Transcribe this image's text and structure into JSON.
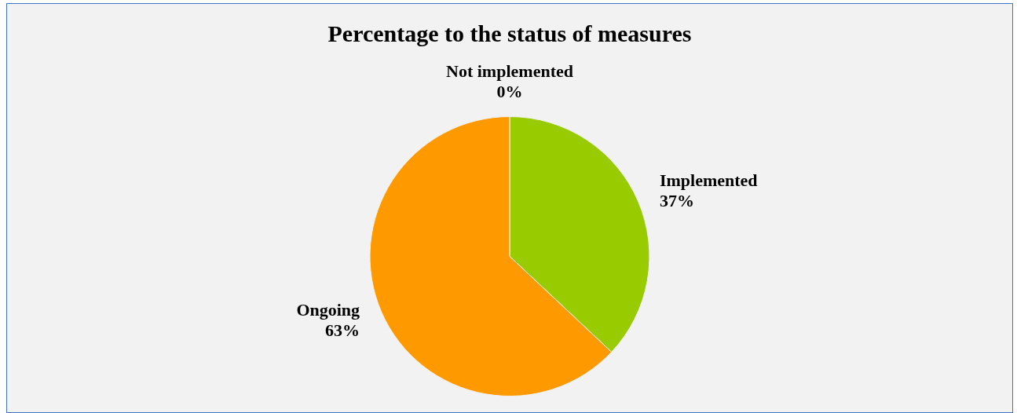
{
  "chart_data": {
    "type": "pie",
    "title": "Percentage to the status of measures",
    "categories": [
      "Implemented",
      "Ongoing",
      "Not implemented"
    ],
    "values": [
      37,
      63,
      0
    ],
    "colors": [
      "#99cc00",
      "#ff9900",
      "#7f7f7f"
    ],
    "value_labels": [
      "37%",
      "63%",
      "0%"
    ],
    "legend": false
  }
}
